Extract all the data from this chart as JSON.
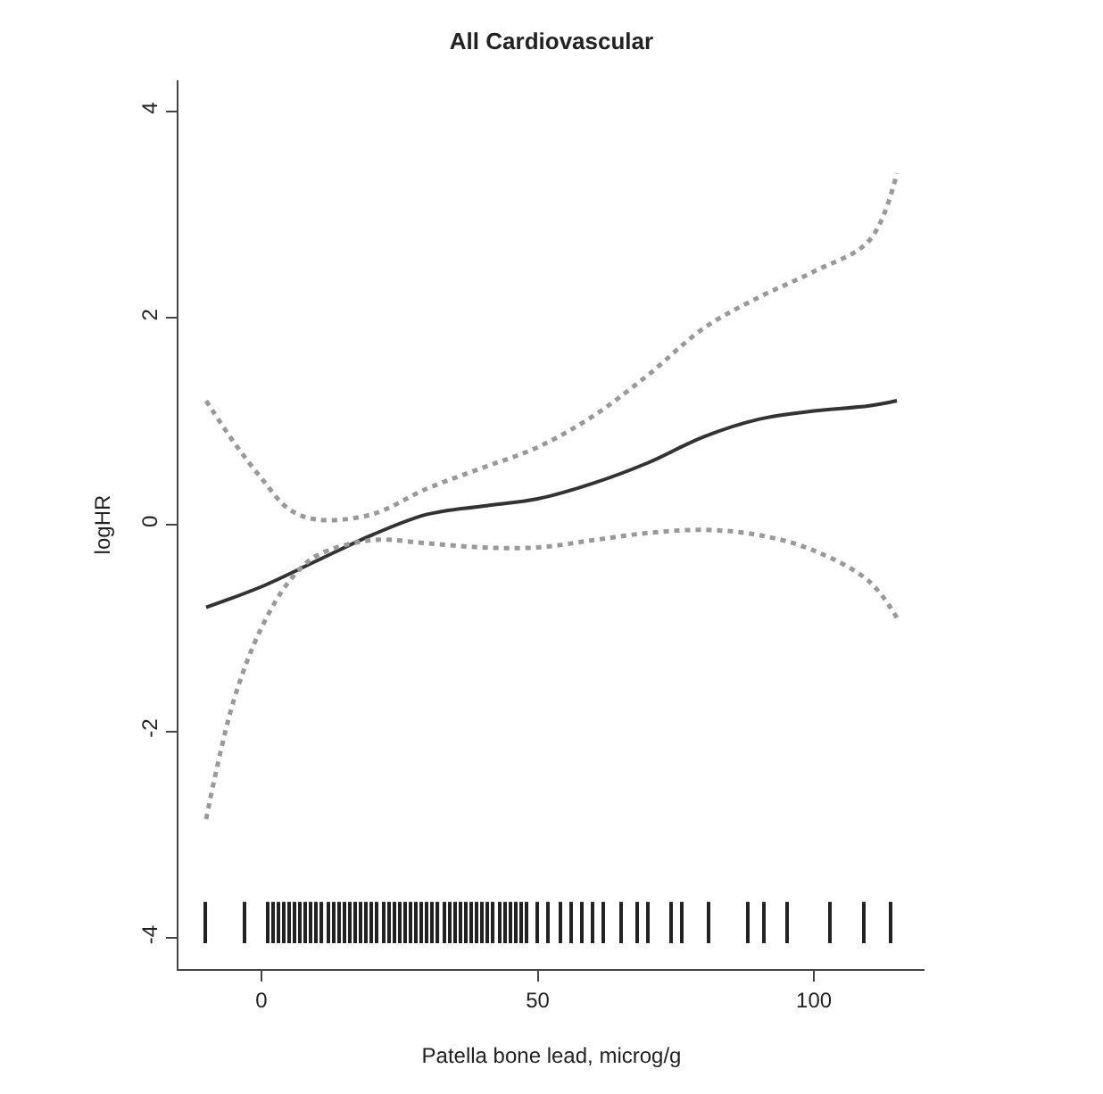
{
  "chart_data": {
    "type": "line",
    "title": "All Cardiovascular",
    "xlabel": "Patella bone lead, microg/g",
    "ylabel": "logHR",
    "xlim": [
      -15,
      120
    ],
    "xticks": [
      0,
      50,
      100
    ],
    "ylim": [
      -4.3,
      4.3
    ],
    "yticks": [
      -4,
      -2,
      0,
      2,
      4
    ],
    "series": [
      {
        "color": "#333333",
        "line_style": "solid",
        "x": [
          -10,
          0,
          10,
          20,
          30,
          40,
          50,
          60,
          70,
          80,
          90,
          100,
          110,
          115
        ],
        "values": [
          -0.8,
          -0.6,
          -0.35,
          -0.1,
          0.1,
          0.18,
          0.25,
          0.4,
          0.6,
          0.85,
          1.02,
          1.1,
          1.15,
          1.2
        ]
      },
      {
        "color": "#999999",
        "line_style": "dotted",
        "x": [
          -10,
          -5,
          0,
          5,
          10,
          20,
          30,
          40,
          50,
          60,
          70,
          80,
          90,
          100,
          110,
          115
        ],
        "values": [
          1.2,
          0.8,
          0.45,
          0.15,
          0.05,
          0.1,
          0.35,
          0.55,
          0.75,
          1.05,
          1.45,
          1.9,
          2.2,
          2.45,
          2.75,
          3.4
        ]
      },
      {
        "color": "#999999",
        "line_style": "dotted",
        "x": [
          -10,
          -5,
          0,
          5,
          10,
          20,
          30,
          40,
          50,
          60,
          70,
          80,
          90,
          100,
          110,
          115
        ],
        "values": [
          -2.85,
          -1.7,
          -1.0,
          -0.55,
          -0.3,
          -0.15,
          -0.18,
          -0.22,
          -0.22,
          -0.15,
          -0.08,
          -0.05,
          -0.1,
          -0.25,
          -0.55,
          -0.9
        ]
      },
      {
        "type": "bar",
        "color": "#222222",
        "x": [
          -10,
          -3,
          1,
          2,
          3,
          4,
          5,
          6,
          7,
          8,
          9,
          10,
          11,
          12,
          13,
          14,
          15,
          16,
          17,
          18,
          19,
          20,
          21,
          22,
          23,
          24,
          25,
          26,
          27,
          28,
          29,
          30,
          31,
          32,
          33,
          34,
          35,
          36,
          37,
          38,
          39,
          40,
          41,
          42,
          43,
          44,
          45,
          46,
          47,
          48,
          50,
          52,
          54,
          56,
          58,
          60,
          62,
          65,
          68,
          70,
          74,
          76,
          81,
          88,
          91,
          95,
          103,
          109,
          114
        ],
        "base": [
          -4.05,
          -4.05,
          -4.05,
          -4.05,
          -4.05,
          -4.05,
          -4.05,
          -4.05,
          -4.05,
          -4.05,
          -4.05,
          -4.05,
          -4.05,
          -4.05,
          -4.05,
          -4.05,
          -4.05,
          -4.05,
          -4.05,
          -4.05,
          -4.05,
          -4.05,
          -4.05,
          -4.05,
          -4.05,
          -4.05,
          -4.05,
          -4.05,
          -4.05,
          -4.05,
          -4.05,
          -4.05,
          -4.05,
          -4.05,
          -4.05,
          -4.05,
          -4.05,
          -4.05,
          -4.05,
          -4.05,
          -4.05,
          -4.05,
          -4.05,
          -4.05,
          -4.05,
          -4.05,
          -4.05,
          -4.05,
          -4.05,
          -4.05,
          -4.05,
          -4.05,
          -4.05,
          -4.05,
          -4.05,
          -4.05,
          -4.05,
          -4.05,
          -4.05,
          -4.05,
          -4.05,
          -4.05,
          -4.05,
          -4.05,
          -4.05,
          -4.05,
          -4.05,
          -4.05,
          -4.05
        ],
        "values": [
          0.4,
          0.4,
          0.4,
          0.4,
          0.4,
          0.4,
          0.4,
          0.4,
          0.4,
          0.4,
          0.4,
          0.4,
          0.4,
          0.4,
          0.4,
          0.4,
          0.4,
          0.4,
          0.4,
          0.4,
          0.4,
          0.4,
          0.4,
          0.4,
          0.4,
          0.4,
          0.4,
          0.4,
          0.4,
          0.4,
          0.4,
          0.4,
          0.4,
          0.4,
          0.4,
          0.4,
          0.4,
          0.4,
          0.4,
          0.4,
          0.4,
          0.4,
          0.4,
          0.4,
          0.4,
          0.4,
          0.4,
          0.4,
          0.4,
          0.4,
          0.4,
          0.4,
          0.4,
          0.4,
          0.4,
          0.4,
          0.4,
          0.4,
          0.4,
          0.4,
          0.4,
          0.4,
          0.4,
          0.4,
          0.4,
          0.4,
          0.4,
          0.4,
          0.4
        ]
      }
    ]
  }
}
